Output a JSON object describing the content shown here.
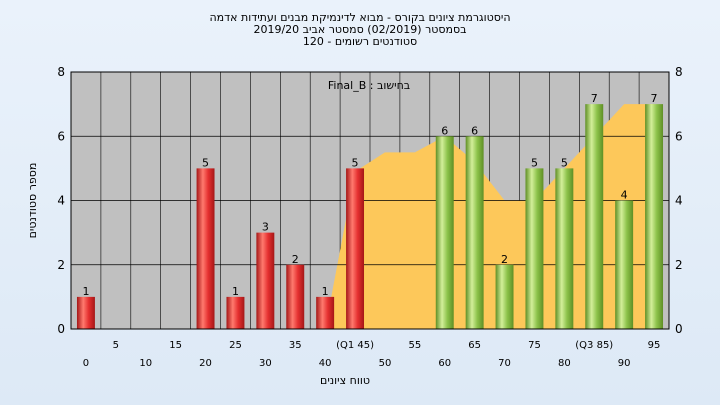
{
  "header": {
    "line1": "היסטוגרמת ציונים בקורס - מבוא לדינמיקת מבנים ועתידות אדמה",
    "line2": "בסמסטר  (02/2019)  סמסטר אביב 2019/20",
    "line3": "סטודנטים רשומים - 120"
  },
  "chart_data": {
    "type": "bar",
    "ylabel": "מספר סטודנטים",
    "xlabel": "טווח ציונים",
    "legend_label": "Final_B : בחישוב",
    "ylim": [
      0,
      8
    ],
    "yticks": [
      0,
      2,
      4,
      6,
      8
    ],
    "bins": [
      0,
      5,
      10,
      15,
      20,
      25,
      30,
      35,
      40,
      45,
      50,
      55,
      60,
      65,
      70,
      75,
      80,
      85,
      90,
      95
    ],
    "xtick_labels_lower": [
      "0",
      "10",
      "20",
      "30",
      "40",
      "50",
      "60",
      "70",
      "80",
      "90"
    ],
    "xtick_labels_upper": [
      "5",
      "15",
      "25",
      "35",
      "(Q1 45)",
      "55",
      "65",
      "75",
      "(Q3 85)",
      "95"
    ],
    "counts": [
      1,
      0,
      0,
      0,
      5,
      1,
      3,
      2,
      1,
      5,
      0,
      0,
      6,
      6,
      2,
      5,
      5,
      7,
      4,
      7
    ],
    "bar_group": [
      "red",
      "red",
      "red",
      "red",
      "red",
      "red",
      "red",
      "red",
      "red",
      "red",
      "green",
      "green",
      "green",
      "green",
      "green",
      "green",
      "green",
      "green",
      "green",
      "green"
    ],
    "area_series": [
      0,
      0,
      0,
      0,
      0,
      0,
      0,
      0,
      0,
      4.9,
      5.5,
      5.5,
      6,
      5.2,
      4,
      4,
      5,
      6,
      7,
      7
    ],
    "colors": {
      "red": "#e53030",
      "green": "#8cc24a",
      "area": "#fdc85a",
      "plot_bg": "#c0c0c0",
      "grid": "#000000"
    }
  }
}
